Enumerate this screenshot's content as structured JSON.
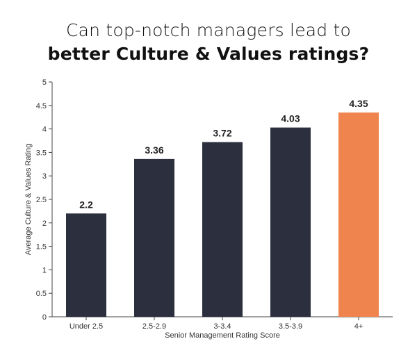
{
  "title": {
    "line1": "Can top-notch managers lead to",
    "line2": "better Culture & Values ratings?"
  },
  "colors": {
    "bar": "#2c2f3e",
    "highlight": "#f0844f",
    "axis": "#444444"
  },
  "chart_data": {
    "type": "bar",
    "categories": [
      "Under 2.5",
      "2.5-2.9",
      "3-3.4",
      "3.5-3.9",
      "4+"
    ],
    "values": [
      2.2,
      3.36,
      3.72,
      4.03,
      4.35
    ],
    "value_labels": [
      "2.2",
      "3.36",
      "3.72",
      "4.03",
      "4.35"
    ],
    "highlight_index": 4,
    "xlabel": "Senior Management Rating Score",
    "ylabel": "Average Culture & Values Rating",
    "ylim": [
      0,
      5
    ],
    "yticks": [
      "0",
      "0.5",
      "1",
      "1.5",
      "2",
      "2.5",
      "3",
      "3.5",
      "4",
      "4.5",
      "5"
    ],
    "grid": false
  }
}
